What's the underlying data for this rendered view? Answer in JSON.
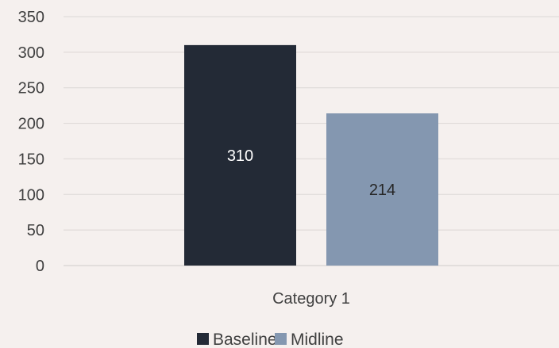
{
  "chart_data": {
    "type": "bar",
    "categories": [
      "Category 1"
    ],
    "series": [
      {
        "name": "Baseline",
        "values": [
          310
        ],
        "color": "#232a36",
        "label_color": "#ffffff"
      },
      {
        "name": "Midline",
        "values": [
          214
        ],
        "color": "#8497b0",
        "label_color": "#262626"
      }
    ],
    "yticks": [
      "0",
      "50",
      "100",
      "150",
      "200",
      "250",
      "300",
      "350"
    ],
    "ylim": [
      0,
      350
    ],
    "grid": true,
    "legend": "bottom",
    "title": "",
    "xlabel": "",
    "ylabel": ""
  }
}
